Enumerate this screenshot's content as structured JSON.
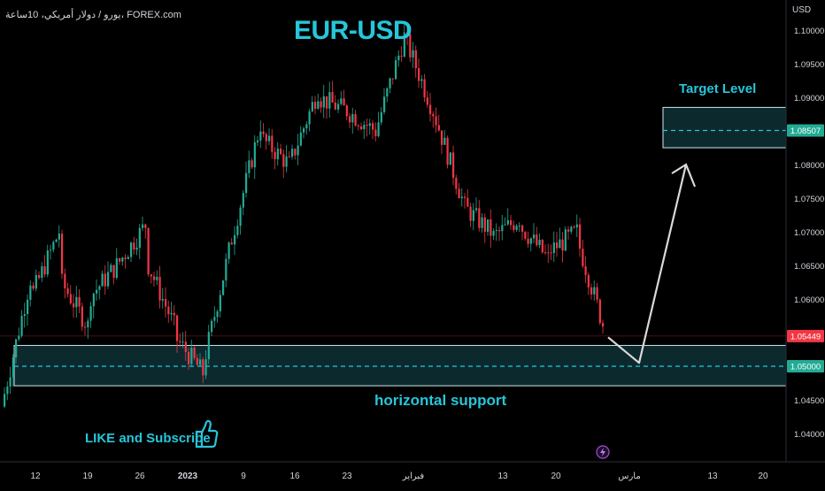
{
  "header": {
    "symbol_info": "يورو / دولار أمريكي، 10ساعة، FOREX.com",
    "currency": "USD"
  },
  "chart_data": {
    "type": "candlestick",
    "title": "EUR-USD",
    "subtitle": "",
    "ylim": [
      1.038,
      1.1045
    ],
    "y_ticks": [
      "1.10000",
      "1.09500",
      "1.09000",
      "1.08500",
      "1.08000",
      "1.07500",
      "1.07000",
      "1.06500",
      "1.06000",
      "1.05500",
      "1.05000",
      "1.04500",
      "1.04000"
    ],
    "x_ticks": [
      "12",
      "19",
      "26",
      "2023",
      "9",
      "16",
      "23",
      "فبراير",
      "13",
      "20",
      "مارس",
      "13",
      "20"
    ],
    "price_tags": [
      {
        "value": "1.05449",
        "color": "#f23645"
      },
      {
        "value": "1.08507",
        "color": "#22ab94"
      },
      {
        "value": "1.05000",
        "color": "#22ab94"
      }
    ],
    "annotations": {
      "target_label": "Target Level",
      "support_label": "horizontal support",
      "like_label": "LIKE and Subscribe"
    },
    "zones": {
      "target": {
        "top": 1.0885,
        "bottom": 1.0825,
        "level": 1.08507
      },
      "support": {
        "top": 1.0531,
        "bottom": 1.0471,
        "level": 1.05
      }
    },
    "projection": [
      {
        "x": "2023-02-24",
        "y": 1.0543
      },
      {
        "x": "2023-03-01",
        "y": 1.0505
      },
      {
        "x": "2023-03-05",
        "y": 1.08
      }
    ],
    "colors": {
      "up": "#22ab94",
      "down": "#f23645",
      "title": "#26c6da",
      "zone_fill": "#0c2a2e",
      "zone_edge": "#cfe8ec"
    },
    "waypoints": [
      [
        1.044,
        1.063
      ],
      [
        1.06,
        1.07
      ],
      [
        1.063,
        1.056
      ],
      [
        1.06,
        1.065
      ],
      [
        1.065,
        1.071
      ],
      [
        1.066,
        1.056
      ],
      [
        1.0545,
        1.049
      ],
      [
        1.05,
        1.069
      ],
      [
        1.069,
        1.086
      ],
      [
        1.084,
        1.08
      ],
      [
        1.08,
        1.091
      ],
      [
        1.09,
        1.088
      ],
      [
        1.088,
        1.085
      ],
      [
        1.085,
        1.099
      ],
      [
        1.099,
        1.088
      ],
      [
        1.088,
        1.075
      ],
      [
        1.074,
        1.07
      ],
      [
        1.069,
        1.072
      ],
      [
        1.071,
        1.066
      ],
      [
        1.067,
        1.07
      ],
      [
        1.069,
        1.0548
      ]
    ]
  }
}
